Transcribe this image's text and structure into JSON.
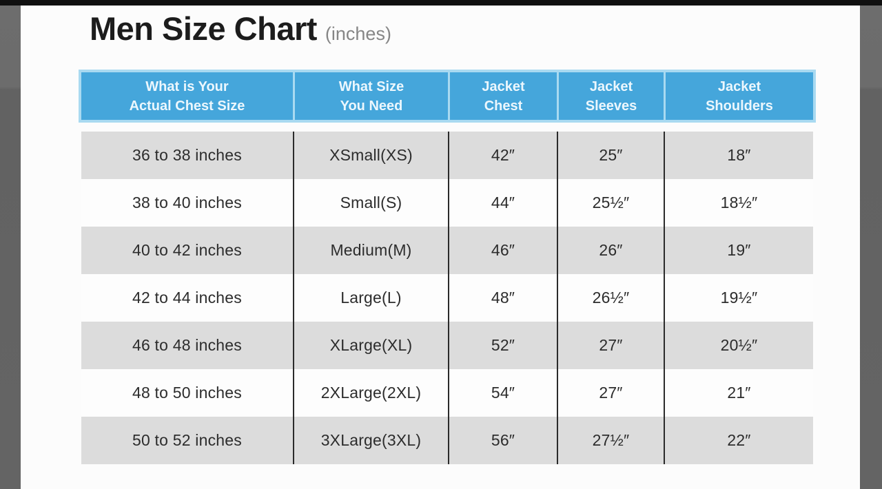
{
  "title": {
    "main": "Men Size Chart",
    "unit": "(inches)"
  },
  "chart_data": {
    "type": "table",
    "title": "Men Size Chart (inches)",
    "columns": [
      {
        "line1": "What is Your",
        "line2": "Actual Chest Size"
      },
      {
        "line1": "What Size",
        "line2": "You Need"
      },
      {
        "line1": "Jacket",
        "line2": "Chest"
      },
      {
        "line1": "Jacket",
        "line2": "Sleeves"
      },
      {
        "line1": "Jacket",
        "line2": "Shoulders"
      }
    ],
    "rows": [
      [
        "36 to 38 inches",
        "XSmall(XS)",
        "42″",
        "25″",
        "18″"
      ],
      [
        "38 to 40 inches",
        "Small(S)",
        "44″",
        "25½″",
        "18½″"
      ],
      [
        "40 to 42 inches",
        "Medium(M)",
        "46″",
        "26″",
        "19″"
      ],
      [
        "42 to 44 inches",
        "Large(L)",
        "48″",
        "26½″",
        "19½″"
      ],
      [
        "46 to 48 inches",
        "XLarge(XL)",
        "52″",
        "27″",
        "20½″"
      ],
      [
        "48 to 50 inches",
        "2XLarge(2XL)",
        "54″",
        "27″",
        "21″"
      ],
      [
        "50 to 52 inches",
        "3XLarge(3XL)",
        "56″",
        "27½″",
        "22″"
      ]
    ],
    "colors": {
      "header_bg": "#45a6db",
      "header_border": "#a9daf1",
      "header_text": "#ecf7fd",
      "row_alt_bg": "#dcdcdc",
      "row_bg": "#fdfdfd",
      "divider": "#2a2a2a",
      "text_color": "#2c2c2c"
    }
  }
}
